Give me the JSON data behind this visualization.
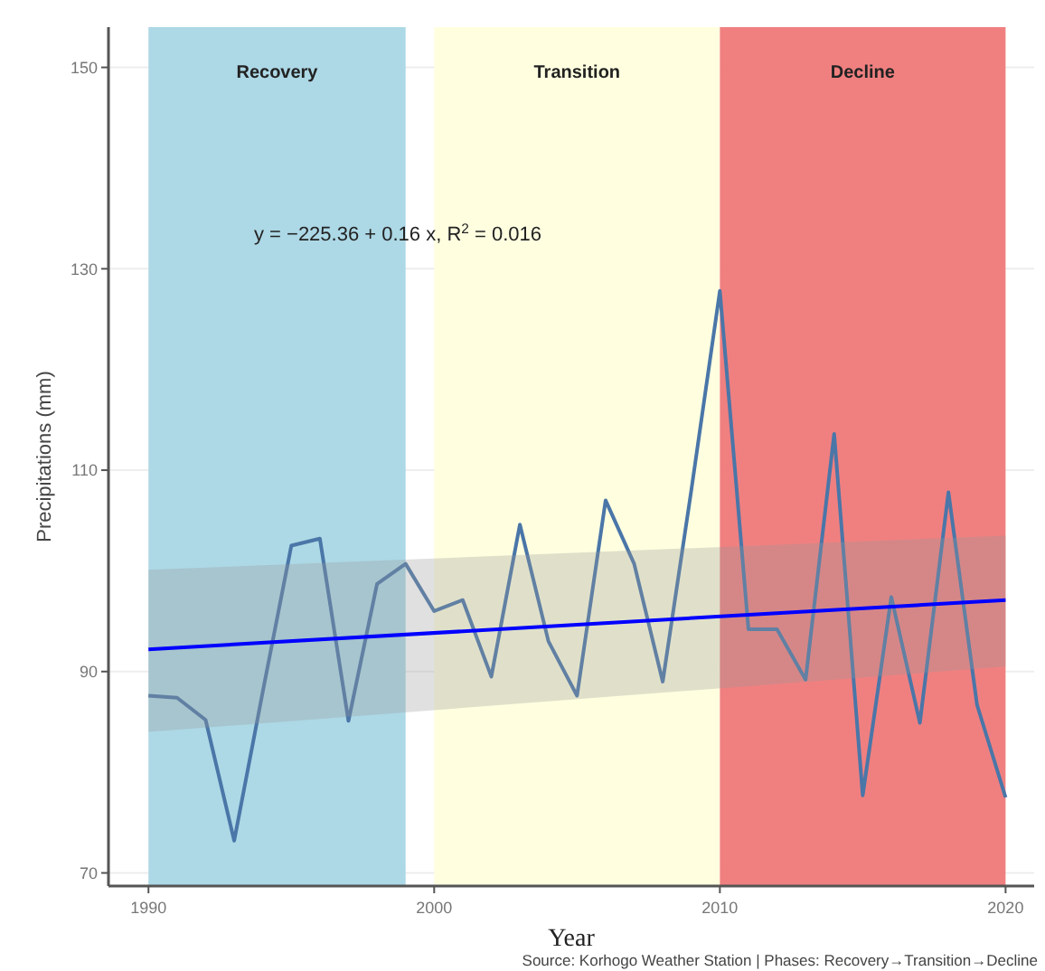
{
  "chart_data": {
    "type": "line",
    "xlabel": "Year",
    "ylabel": "Precipitations (mm)",
    "xlim": [
      1988.6,
      2021
    ],
    "xticks": [
      1990,
      2000,
      2010,
      2020
    ],
    "ylim": [
      68.7,
      154
    ],
    "yticks": [
      70,
      90,
      110,
      130,
      150
    ],
    "grid": "y",
    "marker": "none",
    "line_style": "solid",
    "bands": [
      {
        "axis": "x",
        "from": 1990,
        "to": 1999,
        "label": "Recovery",
        "color": "#add8e6"
      },
      {
        "axis": "x",
        "from": 2000,
        "to": 2010,
        "label": "Transition",
        "color": "#ffffe0"
      },
      {
        "axis": "x",
        "from": 2010,
        "to": 2020,
        "label": "Decline",
        "color": "#f08080"
      }
    ],
    "series": [
      {
        "color": "#4a76a8",
        "x": [
          1990,
          1991,
          1992,
          1993,
          1994,
          1995,
          1996,
          1997,
          1998,
          1999,
          2000,
          2001,
          2002,
          2003,
          2004,
          2005,
          2006,
          2007,
          2008,
          2009,
          2010,
          2011,
          2012,
          2013,
          2014,
          2015,
          2016,
          2017,
          2018,
          2019,
          2020
        ],
        "values": [
          87.6,
          87.4,
          85.2,
          73.2,
          88,
          102.5,
          103.2,
          85.1,
          98.7,
          100.7,
          96,
          97.1,
          89.5,
          104.6,
          93,
          87.6,
          107,
          100.7,
          89,
          108,
          127.8,
          94.2,
          94.2,
          89.2,
          113.6,
          77.7,
          97.4,
          84.9,
          107.8,
          86.7,
          77.5
        ]
      },
      {
        "type": "line",
        "color": "#0000ff",
        "x": [
          1990,
          2020
        ],
        "values": [
          92.2,
          97.1
        ],
        "lower": [
          84,
          90.5
        ],
        "upper": [
          100.1,
          103.5
        ]
      }
    ],
    "annotations": [
      "y = −225.36 + 0.16  x,  R$^{2}$ = 0.016",
      "Source: Korhogo Weather Station | Phases: Recovery→Transition→Decline"
    ]
  }
}
